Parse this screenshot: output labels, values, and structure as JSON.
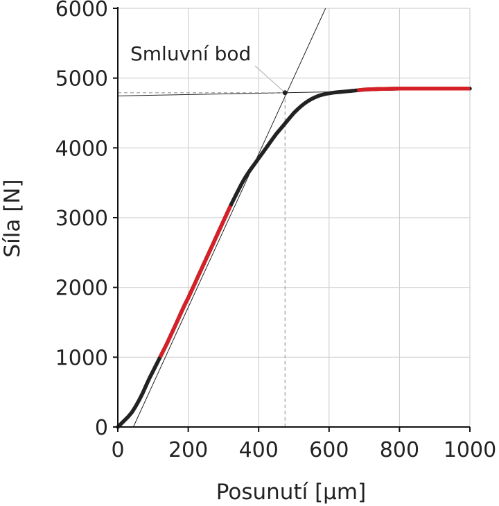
{
  "chart_data": {
    "type": "line",
    "xlabel": "Posunutí [µm]",
    "ylabel": "Síla [N]",
    "xlim": [
      0,
      1000
    ],
    "ylim": [
      0,
      6000
    ],
    "xticks": [
      0,
      200,
      400,
      600,
      800,
      1000
    ],
    "yticks": [
      0,
      1000,
      2000,
      3000,
      4000,
      5000,
      6000
    ],
    "xtick_labels": [
      "0",
      "200",
      "400",
      "600",
      "800",
      "1000"
    ],
    "ytick_labels": [
      "0",
      "1000",
      "2000",
      "3000",
      "4000",
      "5000",
      "6000"
    ],
    "grid": true,
    "series": [
      {
        "color": "#222222",
        "x": [
          0,
          10,
          20,
          30,
          40,
          50,
          60,
          70,
          80,
          90,
          100,
          110,
          120,
          130,
          140,
          150,
          160,
          170,
          180,
          190,
          200,
          210,
          220,
          230,
          240,
          250,
          260,
          270,
          280,
          290,
          300,
          310,
          320,
          330,
          340,
          350,
          360,
          370,
          380,
          390,
          400,
          410,
          420,
          430,
          440,
          450,
          460,
          470,
          480,
          490,
          500,
          510,
          520,
          530,
          540,
          550,
          560,
          570,
          580,
          590,
          600,
          610,
          620,
          630,
          640,
          650,
          660,
          670,
          680,
          690,
          700,
          710,
          720,
          730,
          740,
          750,
          760,
          770,
          780,
          790,
          800,
          810,
          820,
          830,
          840,
          850,
          860,
          870,
          880,
          890,
          900,
          910,
          920,
          930,
          940,
          950,
          960,
          970,
          980,
          990,
          1000
        ],
        "y": [
          0,
          50,
          100,
          150,
          210,
          290,
          380,
          480,
          590,
          700,
          800,
          900,
          1000,
          1100,
          1200,
          1310,
          1420,
          1530,
          1640,
          1750,
          1850,
          1960,
          2070,
          2180,
          2290,
          2400,
          2510,
          2620,
          2730,
          2840,
          2950,
          3060,
          3170,
          3270,
          3370,
          3470,
          3560,
          3640,
          3710,
          3780,
          3850,
          3920,
          3990,
          4060,
          4130,
          4200,
          4260,
          4320,
          4380,
          4440,
          4500,
          4550,
          4595,
          4635,
          4670,
          4700,
          4725,
          4745,
          4760,
          4772,
          4782,
          4790,
          4796,
          4800,
          4805,
          4810,
          4815,
          4820,
          4825,
          4830,
          4835,
          4838,
          4840,
          4842,
          4844,
          4845,
          4846,
          4847,
          4848,
          4849,
          4850,
          4850,
          4850,
          4850,
          4850,
          4850,
          4850,
          4850,
          4850,
          4850,
          4850,
          4850,
          4850,
          4850,
          4850,
          4850,
          4850,
          4850,
          4850,
          4850,
          4850
        ]
      }
    ],
    "highlight_segments": [
      {
        "color": "#d62027",
        "x_from": 120,
        "x_to": 320
      },
      {
        "color": "#d62027",
        "x_from": 680,
        "x_to": 1000
      }
    ],
    "tangent_lines": [
      {
        "x": [
          44,
          590
        ],
        "y": [
          0,
          6000
        ]
      },
      {
        "x": [
          0,
          680
        ],
        "y": [
          4745,
          4810
        ]
      }
    ],
    "annotation": {
      "text": "Smluvní bod",
      "x": 475,
      "y": 4790
    }
  }
}
